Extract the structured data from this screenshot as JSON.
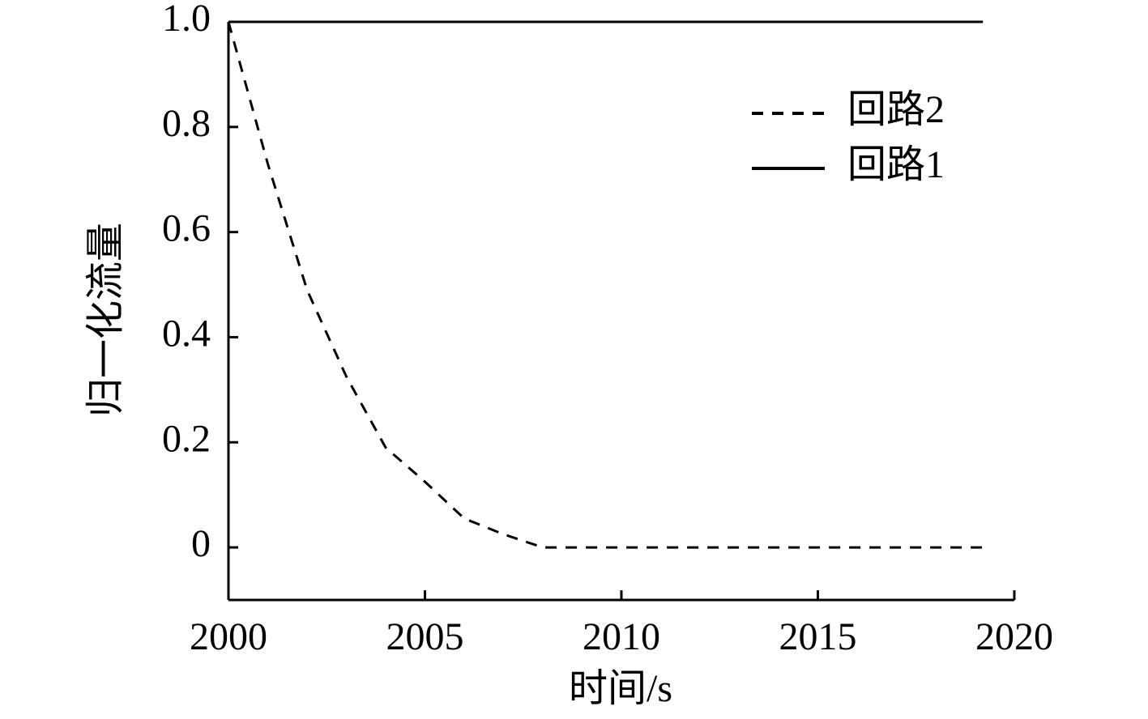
{
  "chart_data": {
    "type": "line",
    "xlabel": "时间/s",
    "ylabel": "归一化流量",
    "xlim": [
      2000,
      2020
    ],
    "ylim": [
      -0.1,
      1.0
    ],
    "xticks": [
      2000,
      2005,
      2010,
      2015,
      2020
    ],
    "yticks": [
      0,
      0.2,
      0.4,
      0.6,
      0.8,
      {
        "value": 1,
        "label": "1.0"
      }
    ],
    "legend": "upper right",
    "series": [
      {
        "name": "回路2",
        "color": "#000000",
        "line_style": "dashed",
        "x": [
          2000,
          2001,
          2002,
          2003,
          2004,
          2005,
          2006,
          2007,
          2008,
          2019.2
        ],
        "values": [
          1.0,
          0.73,
          0.49,
          0.325,
          0.19,
          0.125,
          0.055,
          0.025,
          0,
          0
        ]
      },
      {
        "name": "回路1",
        "color": "#000000",
        "line_style": "solid",
        "x": [
          2000,
          2019.2
        ],
        "values": [
          1.0,
          1.0
        ]
      }
    ]
  }
}
